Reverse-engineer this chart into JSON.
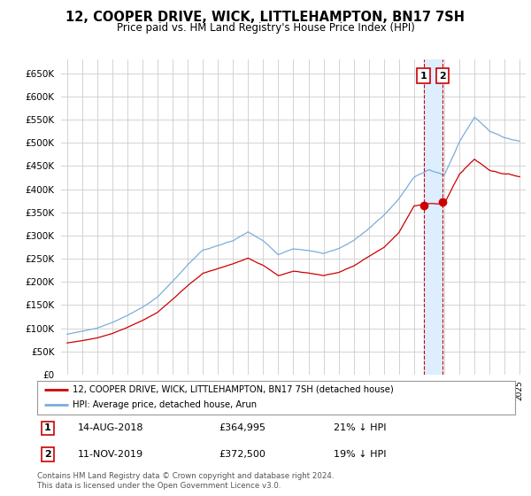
{
  "title": "12, COOPER DRIVE, WICK, LITTLEHAMPTON, BN17 7SH",
  "subtitle": "Price paid vs. HM Land Registry's House Price Index (HPI)",
  "ylim": [
    0,
    680000
  ],
  "yticks": [
    0,
    50000,
    100000,
    150000,
    200000,
    250000,
    300000,
    350000,
    400000,
    450000,
    500000,
    550000,
    600000,
    650000
  ],
  "legend_label_red": "12, COOPER DRIVE, WICK, LITTLEHAMPTON, BN17 7SH (detached house)",
  "legend_label_blue": "HPI: Average price, detached house, Arun",
  "transaction1_label": "1",
  "transaction1_date": "14-AUG-2018",
  "transaction1_price": "£364,995",
  "transaction1_hpi": "21% ↓ HPI",
  "transaction2_label": "2",
  "transaction2_date": "11-NOV-2019",
  "transaction2_price": "£372,500",
  "transaction2_hpi": "19% ↓ HPI",
  "footer": "Contains HM Land Registry data © Crown copyright and database right 2024.\nThis data is licensed under the Open Government Licence v3.0.",
  "red_color": "#cc0000",
  "blue_color": "#7aaddb",
  "shade_color": "#ddeeff",
  "background_color": "#ffffff",
  "grid_color": "#cccccc",
  "marker1_year": 2018.625,
  "marker1_price": 364995,
  "marker2_year": 2019.875,
  "marker2_price": 372500,
  "xlim_left": 1994.6,
  "xlim_right": 2025.4
}
